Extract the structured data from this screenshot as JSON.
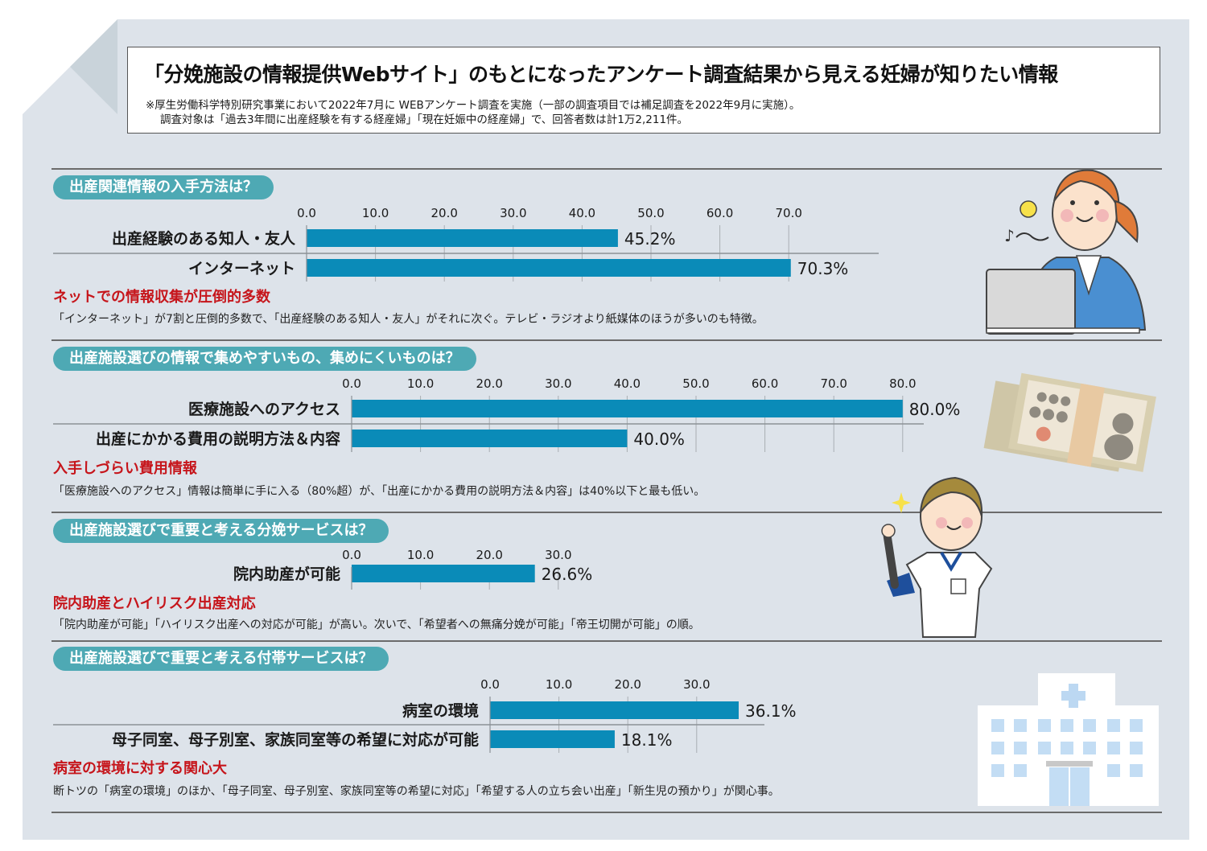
{
  "header": {
    "title": "「分娩施設の情報提供Webサイト」のもとになったアンケート調査結果から見える妊婦が知りたい情報",
    "note_line1": "※厚生労働科学特別研究事業において2022年7月に WEBアンケート調査を実施（一部の調査項目では補足調査を2022年9月に実施）。",
    "note_line2": "調査対象は「過去3年間に出産経験を有する経産婦」「現在妊娠中の経産婦」で、回答者数は計1万2,211件。"
  },
  "colors": {
    "bar": "#0a8bb8",
    "pill": "#4ea9b4",
    "accent_red": "#c6151b",
    "background": "#dde3ea"
  },
  "sections": [
    {
      "question": "出産関連情報の入手方法は？",
      "headline": "ネットでの情報収集が圧倒的多数",
      "description": "「インターネット」が7割と圧倒的多数で、「出産経験のある知人・友人」がそれに次ぐ。テレビ・ラジオより紙媒体のほうが多いのも特徴。",
      "illustration": "woman-with-laptop-icon"
    },
    {
      "question": "出産施設選びの情報で集めやすいもの、集めにくいものは？",
      "headline": "入手しづらい費用情報",
      "description": "「医療施設へのアクセス」情報は簡単に手に入る（80%超）が、「出産にかかる費用の説明方法＆内容」は40%以下と最も低い。",
      "illustration": "money-bundle-icon"
    },
    {
      "question": "出産施設選びで重要と考える分娩サービスは？",
      "headline": "院内助産とハイリスク出産対応",
      "description": "「院内助産が可能」「ハイリスク出産への対応が可能」が高い。次いで、「希望者への無痛分娩が可能」「帝王切開が可能」の順。",
      "illustration": "nurse-ok-sign-icon"
    },
    {
      "question": "出産施設選びで重要と考える付帯サービスは？",
      "headline": "病室の環境に対する関心大",
      "description": "断トツの「病室の環境」のほか、「母子同室、母子別室、家族同室等の希望に対応」「希望する人の立ち会い出産」「新生児の預かり」が関心事。",
      "illustration": "hospital-building-icon"
    }
  ],
  "chart_data": [
    {
      "type": "bar",
      "orientation": "horizontal",
      "title": "出産関連情報の入手方法は？",
      "categories": [
        "出産経験のある知人・友人",
        "インターネット"
      ],
      "values": [
        45.2,
        70.3
      ],
      "value_labels": [
        "45.2%",
        "70.3%"
      ],
      "ticks": [
        "0.0",
        "10.0",
        "20.0",
        "30.0",
        "40.0",
        "50.0",
        "60.0",
        "70.0"
      ],
      "xlim": [
        0,
        70
      ],
      "grid": true
    },
    {
      "type": "bar",
      "orientation": "horizontal",
      "title": "出産施設選びの情報で集めやすいもの、集めにくいものは？",
      "categories": [
        "医療施設へのアクセス",
        "出産にかかる費用の説明方法＆内容"
      ],
      "values": [
        80.0,
        40.0
      ],
      "value_labels": [
        "80.0%",
        "40.0%"
      ],
      "ticks": [
        "0.0",
        "10.0",
        "20.0",
        "30.0",
        "40.0",
        "50.0",
        "60.0",
        "70.0",
        "80.0"
      ],
      "xlim": [
        0,
        80
      ],
      "grid": true
    },
    {
      "type": "bar",
      "orientation": "horizontal",
      "title": "出産施設選びで重要と考える分娩サービスは？",
      "categories": [
        "院内助産が可能"
      ],
      "values": [
        26.6
      ],
      "value_labels": [
        "26.6%"
      ],
      "ticks": [
        "0.0",
        "10.0",
        "20.0",
        "30.0"
      ],
      "xlim": [
        0,
        30
      ],
      "grid": true
    },
    {
      "type": "bar",
      "orientation": "horizontal",
      "title": "出産施設選びで重要と考える付帯サービスは？",
      "categories": [
        "病室の環境",
        "母子同室、母子別室、家族同室等の希望に対応が可能"
      ],
      "values": [
        36.1,
        18.1
      ],
      "value_labels": [
        "36.1%",
        "18.1%"
      ],
      "ticks": [
        "0.0",
        "10.0",
        "20.0",
        "30.0"
      ],
      "xlim": [
        0,
        30
      ],
      "grid": true
    }
  ]
}
